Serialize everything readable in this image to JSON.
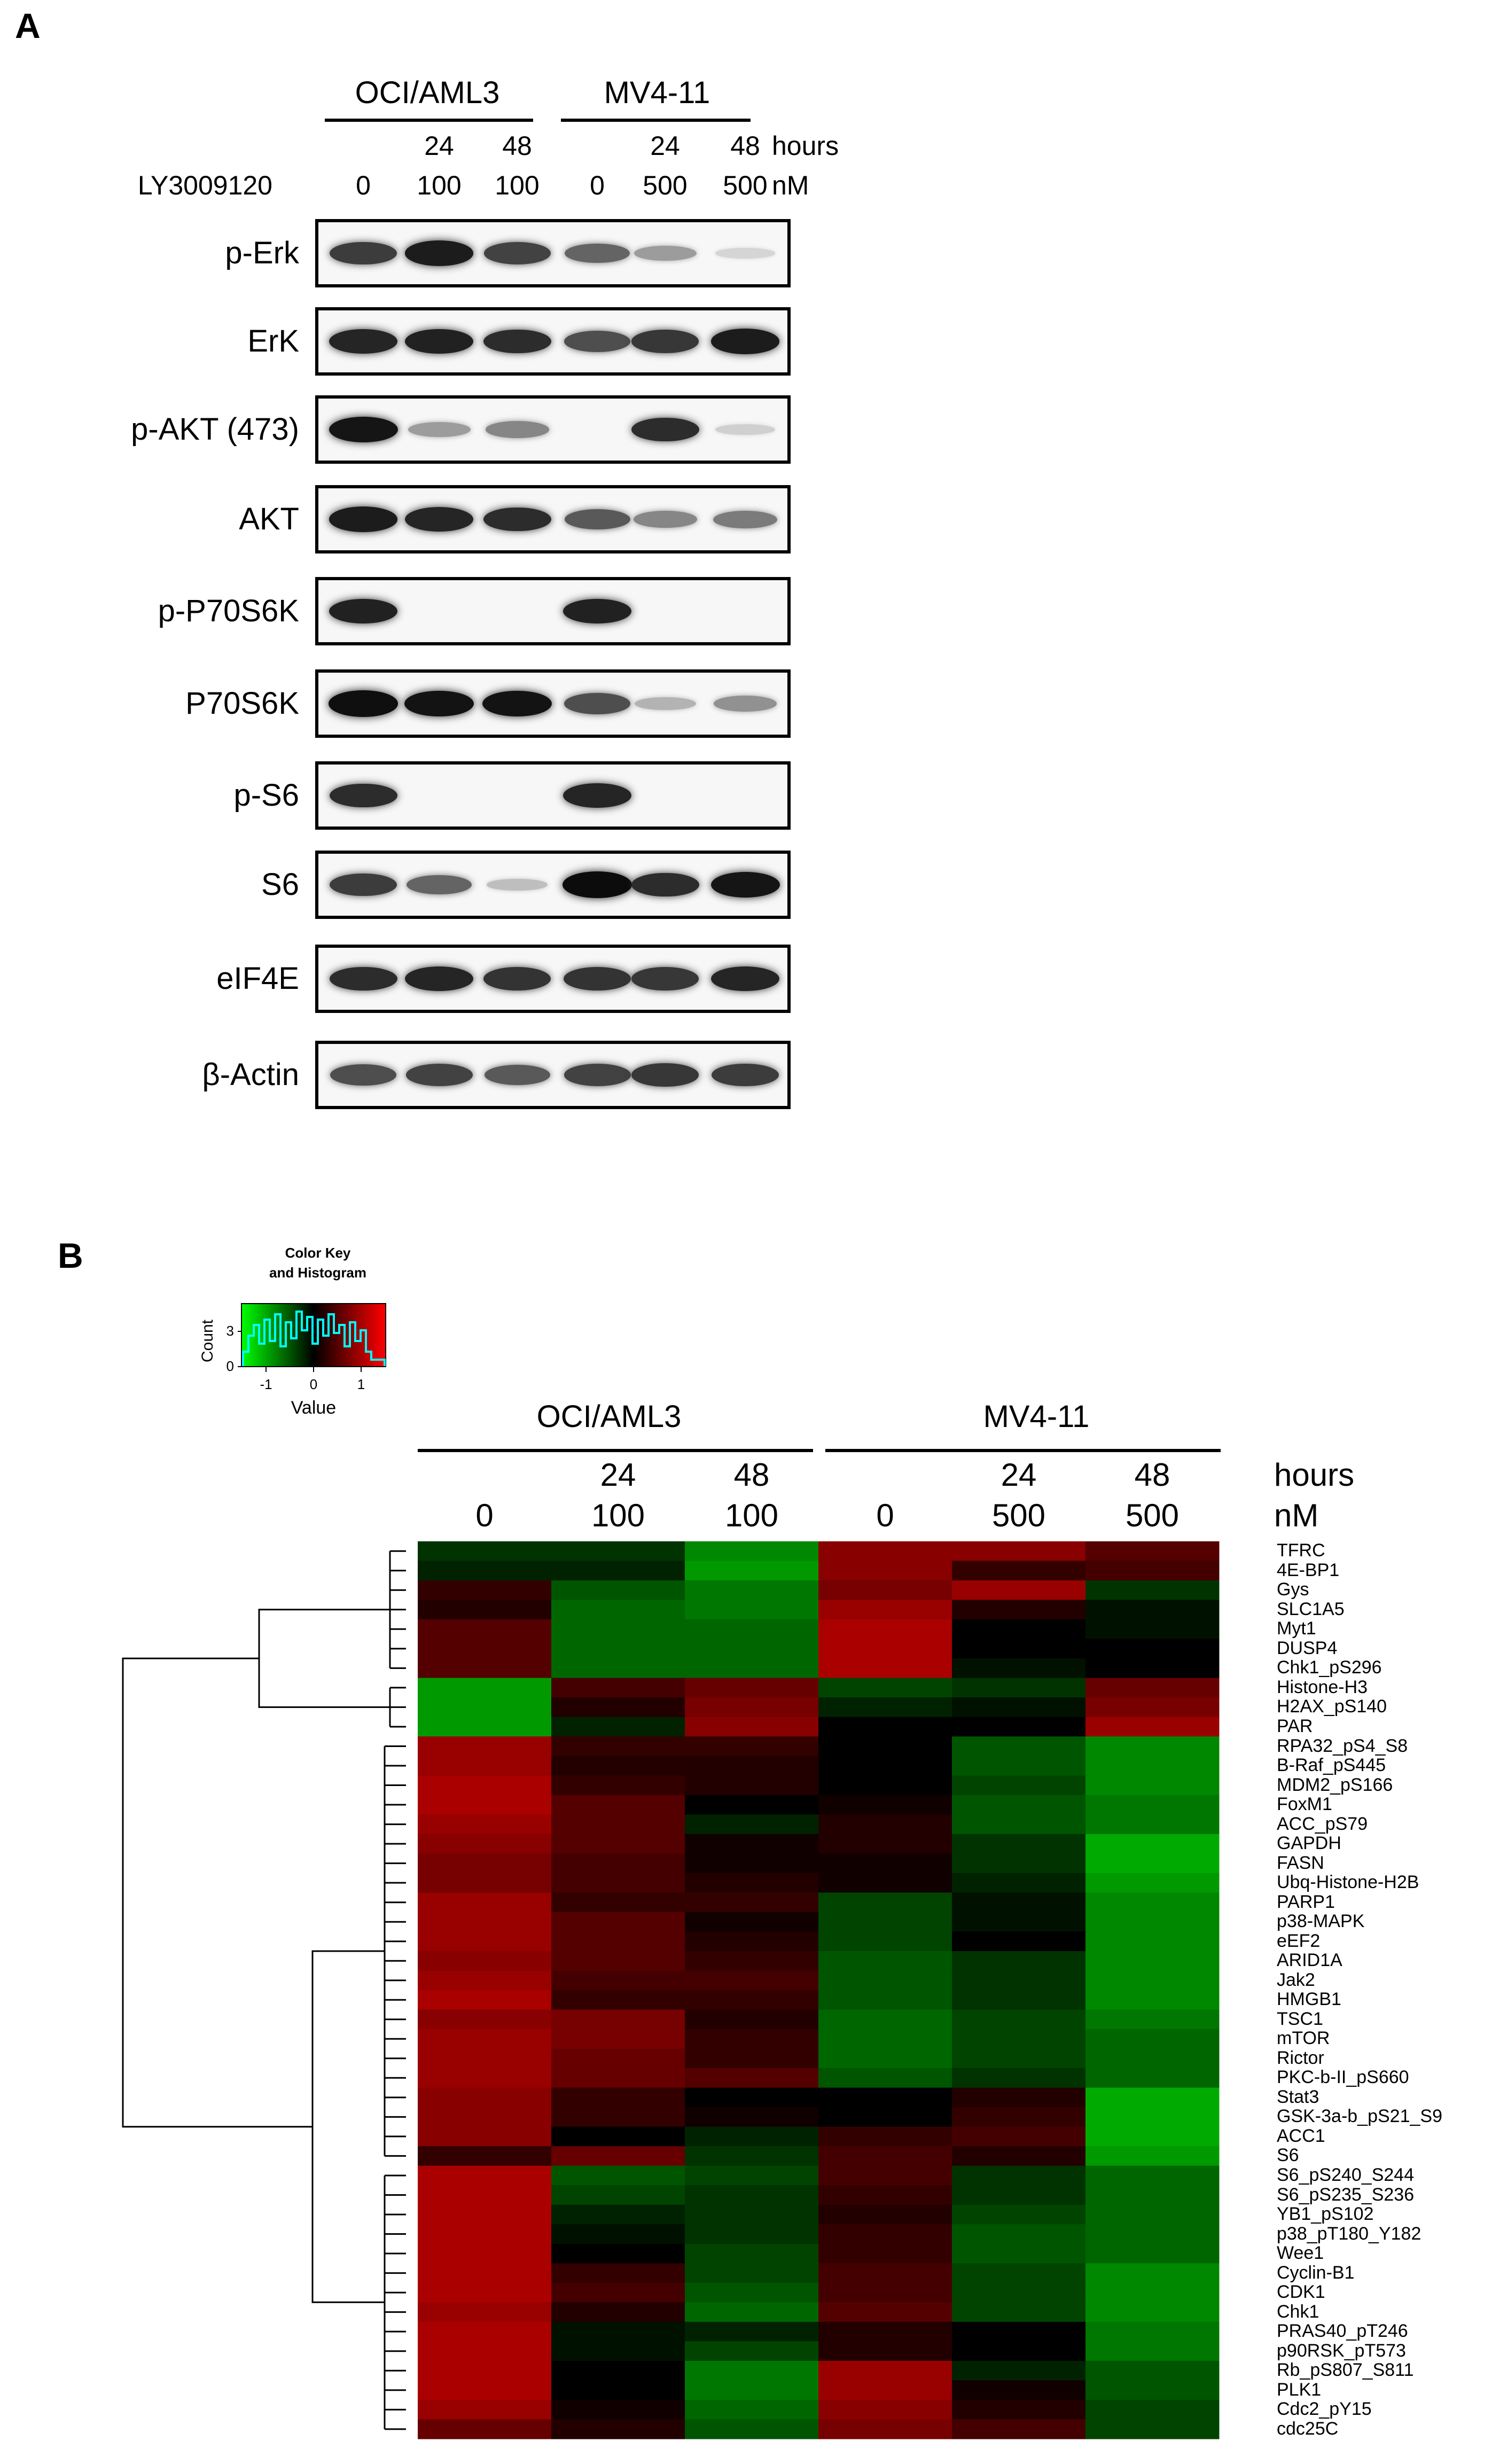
{
  "panelA": {
    "letter": "A",
    "groups": [
      {
        "label": "OCI/AML3"
      },
      {
        "label": "MV4-11"
      }
    ],
    "hours_row": {
      "values": [
        "",
        "24",
        "48",
        "",
        "24",
        "48"
      ],
      "unit": "hours"
    },
    "dose_row": {
      "label": "LY3009120",
      "values": [
        "0",
        "100",
        "100",
        "0",
        "500",
        "500"
      ],
      "unit": "nM"
    },
    "blots": [
      {
        "label": "p-Erk",
        "bands": [
          0.78,
          0.92,
          0.75,
          0.6,
          0.35,
          0.1
        ]
      },
      {
        "label": "ErK",
        "bands": [
          0.88,
          0.9,
          0.85,
          0.7,
          0.8,
          0.92
        ]
      },
      {
        "label": "p-AKT (473)",
        "bands": [
          0.95,
          0.35,
          0.45,
          0.0,
          0.85,
          0.12
        ]
      },
      {
        "label": "AKT",
        "bands": [
          0.92,
          0.88,
          0.85,
          0.65,
          0.45,
          0.5
        ]
      },
      {
        "label": "p-P70S6K",
        "bands": [
          0.9,
          0.0,
          0.0,
          0.9,
          0.0,
          0.0
        ]
      },
      {
        "label": "P70S6K",
        "bands": [
          0.98,
          0.96,
          0.96,
          0.7,
          0.25,
          0.4
        ]
      },
      {
        "label": "p-S6",
        "bands": [
          0.85,
          0.0,
          0.0,
          0.88,
          0.0,
          0.0
        ]
      },
      {
        "label": "S6",
        "bands": [
          0.78,
          0.6,
          0.2,
          0.99,
          0.85,
          0.95
        ]
      },
      {
        "label": "eIF4E",
        "bands": [
          0.85,
          0.88,
          0.82,
          0.82,
          0.8,
          0.88
        ]
      },
      {
        "label": "β-Actin",
        "bands": [
          0.7,
          0.75,
          0.65,
          0.75,
          0.8,
          0.78
        ]
      }
    ]
  },
  "panelB": {
    "letter": "B",
    "color_key": {
      "title_line1": "Color Key",
      "title_line2": "and Histogram",
      "ylabel": "Count",
      "xlabel": "Value",
      "yticks": [
        "0",
        "3"
      ],
      "xticks": [
        "-1",
        "0",
        "1"
      ]
    },
    "groups": [
      {
        "label": "OCI/AML3"
      },
      {
        "label": "MV4-11"
      }
    ],
    "hours_row": {
      "values": [
        "",
        "24",
        "48",
        "",
        "24",
        "48"
      ],
      "unit": "hours"
    },
    "dose_row": {
      "values": [
        "0",
        "100",
        "100",
        "0",
        "500",
        "500"
      ],
      "unit": "nM"
    },
    "colors": {
      "low": "#00ff00",
      "mid": "#000000",
      "high": "#ff0000"
    }
  },
  "chart_data": {
    "type": "heatmap",
    "columns": [
      "OCI/AML3 0 nM",
      "OCI/AML3 24 hours 100 nM",
      "OCI/AML3 48 hours 100 nM",
      "MV4-11 0 nM",
      "MV4-11 24 hours 500 nM",
      "MV4-11 48 hours 500 nM"
    ],
    "rows": [
      "TFRC",
      "4E-BP1",
      "Gys",
      "SLC1A5",
      "Myt1",
      "DUSP4",
      "Chk1_pS296",
      "Histone-H3",
      "H2AX_pS140",
      "PAR",
      "RPA32_pS4_S8",
      "B-Raf_pS445",
      "MDM2_pS166",
      "FoxM1",
      "ACC_pS79",
      "GAPDH",
      "FASN",
      "Ubq-Histone-H2B",
      "PARP1",
      "p38-MAPK",
      "eEF2",
      "ARID1A",
      "Jak2",
      "HMGB1",
      "TSC1",
      "mTOR",
      "Rictor",
      "PKC-b-II_pS660",
      "Stat3",
      "GSK-3a-b_pS21_S9",
      "ACC1",
      "S6",
      "S6_pS240_S244",
      "S6_pS235_S236",
      "YB1_pS102",
      "p38_pT180_Y182",
      "Wee1",
      "Cyclin-B1",
      "CDK1",
      "Chk1",
      "PRAS40_pT246",
      "p90RSK_pT573",
      "Rb_pS807_S811",
      "PLK1",
      "Cdc2_pY15",
      "cdc25C"
    ],
    "values": [
      [
        -0.3,
        -0.3,
        -0.8,
        0.8,
        0.8,
        0.5
      ],
      [
        -0.2,
        -0.2,
        -0.9,
        0.8,
        0.3,
        0.4
      ],
      [
        0.3,
        -0.5,
        -0.7,
        0.7,
        0.9,
        -0.3
      ],
      [
        0.2,
        -0.6,
        -0.7,
        0.9,
        0.2,
        -0.1
      ],
      [
        0.5,
        -0.6,
        -0.6,
        1.0,
        0.0,
        -0.1
      ],
      [
        0.5,
        -0.6,
        -0.6,
        1.0,
        0.0,
        0.0
      ],
      [
        0.5,
        -0.6,
        -0.6,
        1.0,
        -0.1,
        0.0
      ],
      [
        -0.9,
        0.4,
        0.6,
        -0.4,
        -0.3,
        0.6
      ],
      [
        -0.9,
        0.2,
        0.7,
        -0.2,
        -0.1,
        0.7
      ],
      [
        -0.9,
        -0.2,
        0.8,
        0.0,
        0.0,
        0.9
      ],
      [
        0.9,
        0.3,
        0.3,
        0.0,
        -0.5,
        -0.8
      ],
      [
        0.9,
        0.2,
        0.2,
        0.0,
        -0.5,
        -0.8
      ],
      [
        1.0,
        0.3,
        0.2,
        0.0,
        -0.4,
        -0.8
      ],
      [
        1.0,
        0.5,
        0.0,
        0.1,
        -0.5,
        -0.7
      ],
      [
        0.9,
        0.5,
        -0.2,
        0.2,
        -0.5,
        -0.7
      ],
      [
        0.8,
        0.5,
        0.1,
        0.2,
        -0.3,
        -1.0
      ],
      [
        0.7,
        0.4,
        0.1,
        0.1,
        -0.3,
        -1.0
      ],
      [
        0.7,
        0.4,
        0.2,
        0.1,
        -0.2,
        -0.9
      ],
      [
        0.9,
        0.3,
        0.3,
        -0.4,
        -0.1,
        -0.8
      ],
      [
        0.9,
        0.5,
        0.1,
        -0.4,
        -0.1,
        -0.8
      ],
      [
        0.9,
        0.5,
        0.2,
        -0.4,
        0.0,
        -0.8
      ],
      [
        0.8,
        0.5,
        0.3,
        -0.5,
        -0.3,
        -0.8
      ],
      [
        0.9,
        0.4,
        0.4,
        -0.5,
        -0.3,
        -0.8
      ],
      [
        1.0,
        0.3,
        0.3,
        -0.5,
        -0.3,
        -0.8
      ],
      [
        0.8,
        0.7,
        0.2,
        -0.6,
        -0.4,
        -0.7
      ],
      [
        0.9,
        0.7,
        0.3,
        -0.6,
        -0.4,
        -0.6
      ],
      [
        0.9,
        0.6,
        0.3,
        -0.6,
        -0.4,
        -0.6
      ],
      [
        0.9,
        0.6,
        0.5,
        -0.5,
        -0.3,
        -0.6
      ],
      [
        0.8,
        0.3,
        0.0,
        0.0,
        0.2,
        -1.0
      ],
      [
        0.8,
        0.3,
        0.1,
        0.0,
        0.3,
        -1.0
      ],
      [
        0.8,
        0.0,
        -0.2,
        0.3,
        0.4,
        -1.0
      ],
      [
        0.3,
        0.6,
        -0.3,
        0.4,
        0.2,
        -0.9
      ],
      [
        1.0,
        -0.5,
        -0.4,
        0.4,
        -0.3,
        -0.6
      ],
      [
        1.0,
        -0.4,
        -0.3,
        0.3,
        -0.3,
        -0.6
      ],
      [
        1.0,
        -0.2,
        -0.3,
        0.2,
        -0.4,
        -0.6
      ],
      [
        1.0,
        -0.1,
        -0.3,
        0.3,
        -0.5,
        -0.6
      ],
      [
        1.0,
        0.0,
        -0.4,
        0.3,
        -0.5,
        -0.6
      ],
      [
        1.0,
        0.3,
        -0.4,
        0.4,
        -0.4,
        -0.8
      ],
      [
        1.0,
        0.4,
        -0.5,
        0.4,
        -0.4,
        -0.8
      ],
      [
        0.9,
        0.2,
        -0.6,
        0.5,
        -0.4,
        -0.8
      ],
      [
        1.0,
        -0.1,
        -0.2,
        0.2,
        0.0,
        -0.7
      ],
      [
        1.0,
        -0.1,
        -0.4,
        0.2,
        0.0,
        -0.7
      ],
      [
        1.0,
        0.0,
        -0.7,
        0.9,
        -0.2,
        -0.5
      ],
      [
        1.0,
        0.0,
        -0.7,
        0.9,
        0.1,
        -0.5
      ],
      [
        0.9,
        0.1,
        -0.6,
        0.8,
        0.2,
        -0.4
      ],
      [
        0.6,
        0.2,
        -0.5,
        0.7,
        0.4,
        -0.4
      ]
    ],
    "value_range": [
      -1.5,
      1.5
    ],
    "legend": "top-left",
    "grid": false
  }
}
